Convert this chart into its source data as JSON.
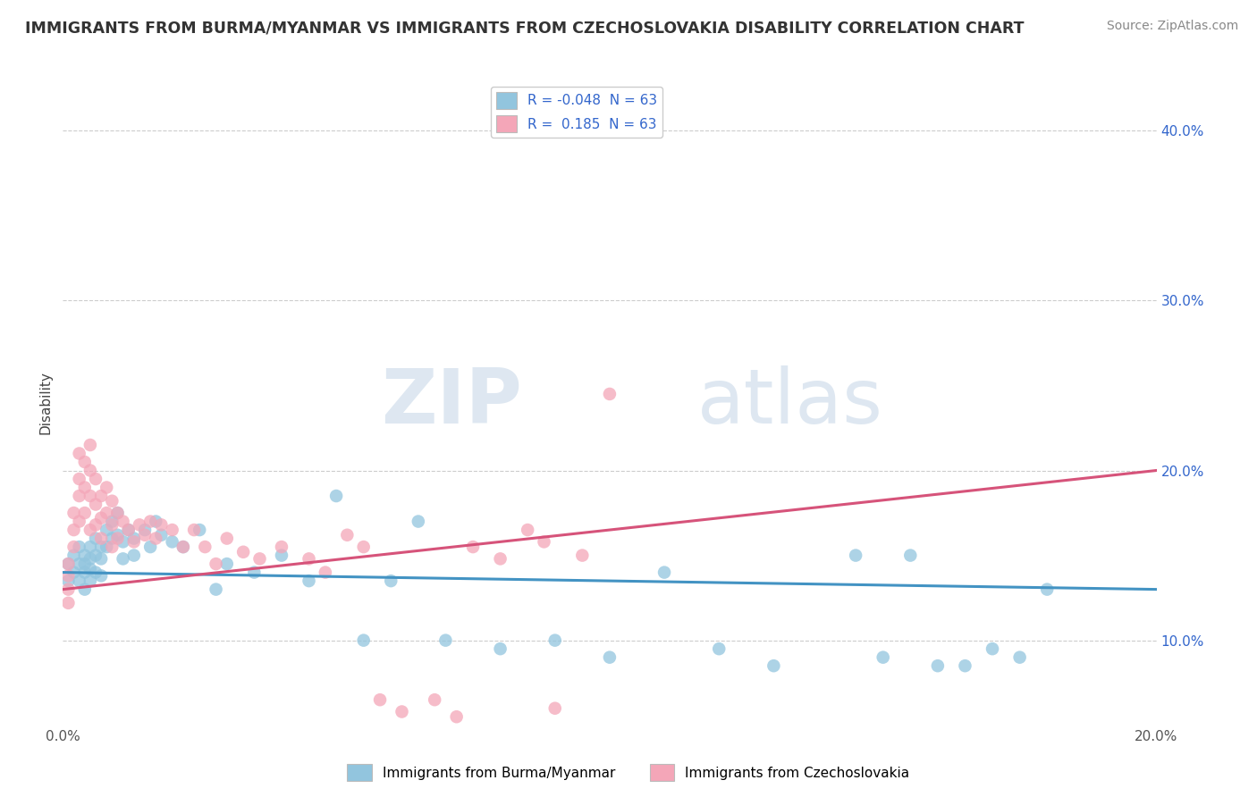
{
  "title": "IMMIGRANTS FROM BURMA/MYANMAR VS IMMIGRANTS FROM CZECHOSLOVAKIA DISABILITY CORRELATION CHART",
  "source": "Source: ZipAtlas.com",
  "ylabel_label": "Disability",
  "xlim": [
    0.0,
    0.2
  ],
  "ylim": [
    0.05,
    0.43
  ],
  "ytick_positions": [
    0.1,
    0.2,
    0.3,
    0.4
  ],
  "ytick_labels": [
    "10.0%",
    "20.0%",
    "30.0%",
    "40.0%"
  ],
  "xtick_positions": [
    0.0,
    0.2
  ],
  "xtick_labels": [
    "0.0%",
    "20.0%"
  ],
  "r_blue": -0.048,
  "r_pink": 0.185,
  "n_blue": 63,
  "n_pink": 63,
  "color_blue": "#92c5de",
  "color_pink": "#f4a6b8",
  "color_blue_line": "#4393c3",
  "color_pink_line": "#d6537a",
  "legend_label_blue": "Immigrants from Burma/Myanmar",
  "legend_label_pink": "Immigrants from Czechoslovakia",
  "watermark_zip": "ZIP",
  "watermark_atlas": "atlas",
  "background_color": "#ffffff",
  "blue_scatter_x": [
    0.001,
    0.001,
    0.002,
    0.002,
    0.003,
    0.003,
    0.003,
    0.004,
    0.004,
    0.004,
    0.004,
    0.005,
    0.005,
    0.005,
    0.005,
    0.006,
    0.006,
    0.006,
    0.007,
    0.007,
    0.007,
    0.008,
    0.008,
    0.009,
    0.009,
    0.01,
    0.01,
    0.011,
    0.011,
    0.012,
    0.013,
    0.013,
    0.015,
    0.016,
    0.017,
    0.018,
    0.02,
    0.022,
    0.025,
    0.028,
    0.03,
    0.035,
    0.04,
    0.045,
    0.05,
    0.055,
    0.06,
    0.065,
    0.07,
    0.08,
    0.09,
    0.1,
    0.11,
    0.12,
    0.13,
    0.145,
    0.15,
    0.155,
    0.16,
    0.165,
    0.17,
    0.175,
    0.18
  ],
  "blue_scatter_y": [
    0.145,
    0.135,
    0.15,
    0.14,
    0.155,
    0.145,
    0.135,
    0.15,
    0.145,
    0.14,
    0.13,
    0.155,
    0.148,
    0.142,
    0.135,
    0.16,
    0.15,
    0.14,
    0.155,
    0.148,
    0.138,
    0.165,
    0.155,
    0.17,
    0.16,
    0.175,
    0.162,
    0.158,
    0.148,
    0.165,
    0.16,
    0.15,
    0.165,
    0.155,
    0.17,
    0.162,
    0.158,
    0.155,
    0.165,
    0.13,
    0.145,
    0.14,
    0.15,
    0.135,
    0.185,
    0.1,
    0.135,
    0.17,
    0.1,
    0.095,
    0.1,
    0.09,
    0.14,
    0.095,
    0.085,
    0.15,
    0.09,
    0.15,
    0.085,
    0.085,
    0.095,
    0.09,
    0.13
  ],
  "pink_scatter_x": [
    0.001,
    0.001,
    0.001,
    0.001,
    0.002,
    0.002,
    0.002,
    0.003,
    0.003,
    0.003,
    0.003,
    0.004,
    0.004,
    0.004,
    0.005,
    0.005,
    0.005,
    0.005,
    0.006,
    0.006,
    0.006,
    0.007,
    0.007,
    0.007,
    0.008,
    0.008,
    0.009,
    0.009,
    0.009,
    0.01,
    0.01,
    0.011,
    0.012,
    0.013,
    0.014,
    0.015,
    0.016,
    0.017,
    0.018,
    0.02,
    0.022,
    0.024,
    0.026,
    0.028,
    0.03,
    0.033,
    0.036,
    0.04,
    0.045,
    0.048,
    0.052,
    0.055,
    0.058,
    0.062,
    0.068,
    0.072,
    0.075,
    0.08,
    0.085,
    0.088,
    0.09,
    0.095,
    0.1
  ],
  "pink_scatter_y": [
    0.145,
    0.138,
    0.13,
    0.122,
    0.175,
    0.165,
    0.155,
    0.21,
    0.195,
    0.185,
    0.17,
    0.205,
    0.19,
    0.175,
    0.215,
    0.2,
    0.185,
    0.165,
    0.195,
    0.18,
    0.168,
    0.185,
    0.172,
    0.16,
    0.19,
    0.175,
    0.182,
    0.168,
    0.155,
    0.175,
    0.16,
    0.17,
    0.165,
    0.158,
    0.168,
    0.162,
    0.17,
    0.16,
    0.168,
    0.165,
    0.155,
    0.165,
    0.155,
    0.145,
    0.16,
    0.152,
    0.148,
    0.155,
    0.148,
    0.14,
    0.162,
    0.155,
    0.065,
    0.058,
    0.065,
    0.055,
    0.155,
    0.148,
    0.165,
    0.158,
    0.06,
    0.15,
    0.245
  ],
  "blue_line_y0": 0.14,
  "blue_line_y1": 0.13,
  "pink_line_y0": 0.13,
  "pink_line_y1": 0.2
}
